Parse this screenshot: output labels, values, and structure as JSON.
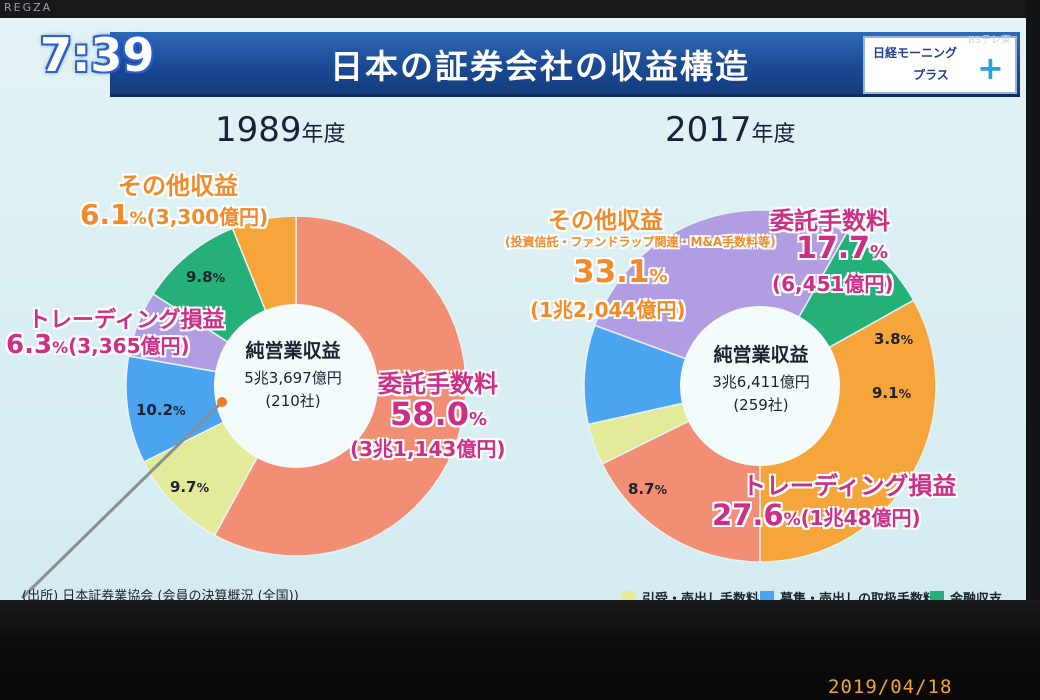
{
  "tv": {
    "brand": "REGZA",
    "datestamp": "2019/04/18"
  },
  "broadcast": {
    "clock": "7:39",
    "title": "日本の証券会社の収益構造",
    "logo_line1": "日経モーニング",
    "logo_line2": "プラス",
    "logo_plus": "+",
    "sub_tag": "BSテレ東"
  },
  "colors": {
    "orange": "#f5a53a",
    "salmon": "#f28e74",
    "yellowgreen": "#e3ea9a",
    "blue": "#4ba4f0",
    "purple": "#b19ee2",
    "green": "#26b079"
  },
  "chart_data": [
    {
      "type": "pie",
      "title": "1989年度",
      "year": "1989",
      "year_suffix": "年度",
      "center": {
        "label": "純営業収益",
        "total": "5兆3,697億円",
        "companies": "(210社)"
      },
      "slices": [
        {
          "name": "委託手数料",
          "value": 58.0,
          "color": "#f28e74",
          "pct_label": "58.0",
          "amount": "(3兆1,143億円)"
        },
        {
          "name": "引受・売出し手数料",
          "value": 9.7,
          "color": "#e3ea9a",
          "pct_label": "9.7"
        },
        {
          "name": "募集・売出しの取扱手数料",
          "value": 10.2,
          "color": "#4ba4f0",
          "pct_label": "10.2"
        },
        {
          "name": "トレーディング損益",
          "value": 6.3,
          "color": "#b19ee2",
          "pct_label": "6.3",
          "amount": "(3,365億円)"
        },
        {
          "name": "金融収支",
          "value": 9.8,
          "color": "#26b079",
          "pct_label": "9.8"
        },
        {
          "name": "その他収益",
          "value": 6.1,
          "color": "#f5a53a",
          "pct_label": "6.1",
          "amount": "(3,300億円)"
        }
      ]
    },
    {
      "type": "pie",
      "title": "2017年度",
      "year": "2017",
      "year_suffix": "年度",
      "center": {
        "label": "純営業収益",
        "total": "3兆6,411億円",
        "companies": "(259社)"
      },
      "slices": [
        {
          "name": "委託手数料",
          "value": 17.7,
          "color": "#f28e74",
          "pct_label": "17.7",
          "amount": "(6,451億円)"
        },
        {
          "name": "引受・売出し手数料",
          "value": 3.8,
          "color": "#e3ea9a",
          "pct_label": "3.8"
        },
        {
          "name": "募集・売出しの取扱手数料",
          "value": 9.1,
          "color": "#4ba4f0",
          "pct_label": "9.1"
        },
        {
          "name": "トレーディング損益",
          "value": 27.6,
          "color": "#b19ee2",
          "pct_label": "27.6",
          "amount": "(1兆48億円)"
        },
        {
          "name": "金融収支",
          "value": 8.7,
          "color": "#26b079",
          "pct_label": "8.7"
        },
        {
          "name": "その他収益",
          "value": 33.1,
          "color": "#f5a53a",
          "pct_label": "33.1",
          "amount": "(1兆2,044億円)",
          "note": "(投資信託・ファンドラップ関連・M&A手数料等)"
        }
      ]
    }
  ],
  "pct_unit": "%",
  "source": "(出所) 日本証券業協会 (会員の決算概況 (全国))",
  "legend": [
    {
      "label": "引受・売出し手数料",
      "color": "#e3ea9a"
    },
    {
      "label": "募集・売出しの取扱手数料",
      "color": "#4ba4f0"
    },
    {
      "label": "金融収支",
      "color": "#26b079"
    }
  ]
}
